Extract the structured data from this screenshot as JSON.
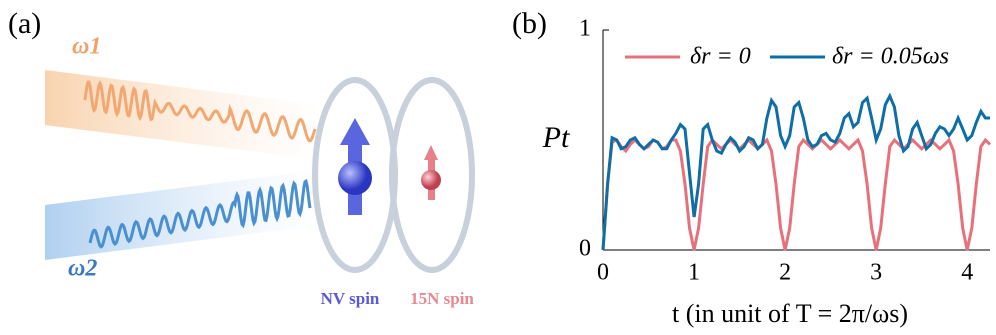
{
  "panel_a": {
    "label": "(a)",
    "omega_1": "ω1",
    "omega_2": "ω2",
    "nv_label": "NV spin",
    "n_label": "15N spin"
  },
  "chart_data": {
    "type": "line",
    "panel_label": "(b)",
    "ylabel": "Pt",
    "xlabel": "t (in unit of T = 2π/ωs)",
    "x": [
      0,
      0.05,
      0.1,
      0.15,
      0.2,
      0.25,
      0.3,
      0.35,
      0.4,
      0.45,
      0.5,
      0.55,
      0.6,
      0.65,
      0.7,
      0.75,
      0.8,
      0.85,
      0.9,
      0.95,
      1,
      1.05,
      1.1,
      1.15,
      1.2,
      1.25,
      1.3,
      1.35,
      1.4,
      1.45,
      1.5,
      1.55,
      1.6,
      1.65,
      1.7,
      1.75,
      1.8,
      1.85,
      1.9,
      1.95,
      2,
      2.05,
      2.1,
      2.15,
      2.2,
      2.25,
      2.3,
      2.35,
      2.4,
      2.45,
      2.5,
      2.55,
      2.6,
      2.65,
      2.7,
      2.75,
      2.8,
      2.85,
      2.9,
      2.95,
      3,
      3.05,
      3.1,
      3.15,
      3.2,
      3.25,
      3.3,
      3.35,
      3.4,
      3.45,
      3.5,
      3.55,
      3.6,
      3.65,
      3.7,
      3.75,
      3.8,
      3.85,
      3.9,
      3.95,
      4,
      4.05,
      4.1,
      4.15,
      4.2,
      4.25
    ],
    "series": [
      {
        "name": "δr = 0",
        "color": "#e8707a",
        "values": [
          0,
          0.3,
          0.49,
          0.5,
          0.47,
          0.45,
          0.48,
          0.5,
          0.48,
          0.46,
          0.47,
          0.5,
          0.49,
          0.46,
          0.47,
          0.5,
          0.5,
          0.45,
          0.3,
          0.1,
          0,
          0.1,
          0.3,
          0.47,
          0.5,
          0.48,
          0.46,
          0.48,
          0.5,
          0.48,
          0.46,
          0.48,
          0.5,
          0.48,
          0.46,
          0.48,
          0.5,
          0.45,
          0.3,
          0.1,
          0,
          0.1,
          0.3,
          0.47,
          0.5,
          0.48,
          0.46,
          0.48,
          0.5,
          0.48,
          0.46,
          0.48,
          0.5,
          0.48,
          0.46,
          0.48,
          0.5,
          0.45,
          0.3,
          0.1,
          0,
          0.1,
          0.3,
          0.47,
          0.5,
          0.48,
          0.46,
          0.48,
          0.5,
          0.48,
          0.46,
          0.48,
          0.5,
          0.48,
          0.46,
          0.48,
          0.5,
          0.45,
          0.3,
          0.1,
          0,
          0.1,
          0.3,
          0.47,
          0.5,
          0.48
        ]
      },
      {
        "name": "δr = 0.05ωs",
        "color": "#0d6fa6",
        "values": [
          0,
          0.3,
          0.51,
          0.5,
          0.46,
          0.47,
          0.5,
          0.51,
          0.48,
          0.46,
          0.48,
          0.5,
          0.49,
          0.46,
          0.46,
          0.5,
          0.53,
          0.57,
          0.55,
          0.35,
          0.15,
          0.3,
          0.55,
          0.57,
          0.5,
          0.45,
          0.44,
          0.48,
          0.51,
          0.49,
          0.45,
          0.47,
          0.51,
          0.5,
          0.46,
          0.48,
          0.6,
          0.68,
          0.65,
          0.52,
          0.47,
          0.52,
          0.65,
          0.67,
          0.6,
          0.5,
          0.47,
          0.48,
          0.52,
          0.53,
          0.5,
          0.49,
          0.53,
          0.6,
          0.62,
          0.56,
          0.58,
          0.67,
          0.69,
          0.6,
          0.5,
          0.55,
          0.66,
          0.7,
          0.65,
          0.52,
          0.45,
          0.47,
          0.55,
          0.58,
          0.52,
          0.46,
          0.48,
          0.53,
          0.56,
          0.55,
          0.52,
          0.55,
          0.6,
          0.55,
          0.5,
          0.52,
          0.58,
          0.63,
          0.6,
          0.6
        ]
      }
    ],
    "xlim": [
      0,
      4.25
    ],
    "xticks": [
      0,
      1,
      2,
      3,
      4
    ],
    "ylim": [
      0,
      1
    ],
    "yticks": [
      0,
      1
    ]
  }
}
